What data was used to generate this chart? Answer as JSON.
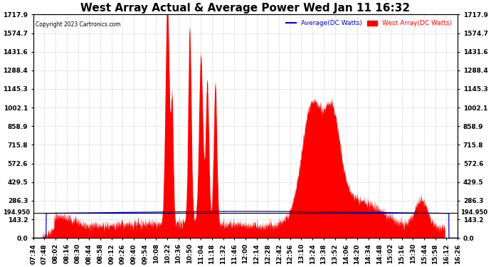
{
  "title": "West Array Actual & Average Power Wed Jan 11 16:32",
  "copyright": "Copyright 2023 Cartronics.com",
  "legend_average": "Average(DC Watts)",
  "legend_west": "West Array(DC Watts)",
  "ymin": 0.0,
  "ymax": 1717.9,
  "yticks": [
    0.0,
    143.2,
    286.3,
    429.5,
    572.6,
    715.8,
    858.9,
    1002.1,
    1145.3,
    1288.4,
    1431.6,
    1574.7,
    1717.9
  ],
  "hline_value": 194.95,
  "hline_label": "194.950",
  "background_color": "#ffffff",
  "grid_color": "#aaaaaa",
  "west_array_color": "#ff0000",
  "average_color": "#0000cc",
  "title_fontsize": 11,
  "tick_fontsize": 6.5,
  "xtick_labels": [
    "07:34",
    "07:48",
    "08:02",
    "08:16",
    "08:30",
    "08:44",
    "08:58",
    "09:12",
    "09:26",
    "09:40",
    "09:54",
    "10:08",
    "10:22",
    "10:36",
    "10:50",
    "11:04",
    "11:18",
    "11:32",
    "11:46",
    "12:00",
    "12:14",
    "12:28",
    "12:42",
    "12:56",
    "13:10",
    "13:24",
    "13:38",
    "13:52",
    "14:06",
    "14:20",
    "14:34",
    "14:48",
    "15:02",
    "15:16",
    "15:30",
    "15:44",
    "15:58",
    "16:12",
    "16:26"
  ]
}
